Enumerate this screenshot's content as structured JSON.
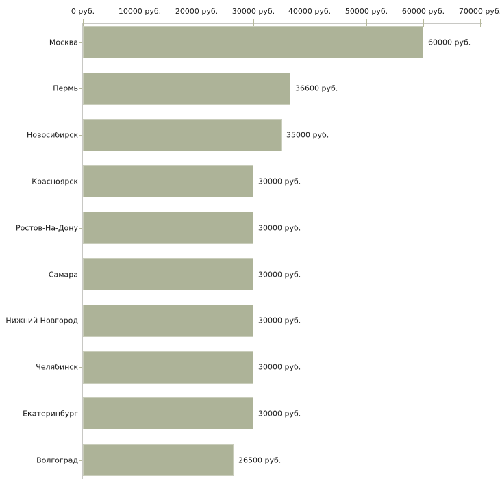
{
  "chart_data": {
    "type": "bar",
    "orientation": "horizontal",
    "title": "",
    "categories": [
      "Москва",
      "Пермь",
      "Новосибирск",
      "Красноярск",
      "Ростов-На-Дону",
      "Самара",
      "Нижний Новгород",
      "Челябинск",
      "Екатеринбург",
      "Волгоград"
    ],
    "values": [
      60000,
      36600,
      35000,
      30000,
      30000,
      30000,
      30000,
      30000,
      30000,
      26500
    ],
    "value_labels": [
      "60000 руб.",
      "36600 руб.",
      "35000 руб.",
      "30000 руб.",
      "30000 руб.",
      "30000 руб.",
      "30000 руб.",
      "30000 руб.",
      "30000 руб.",
      "26500 руб."
    ],
    "unit": "руб.",
    "x_axis": {
      "position": "top",
      "min": 0,
      "max": 70000,
      "tick_values": [
        0,
        10000,
        20000,
        30000,
        40000,
        50000,
        60000,
        70000
      ],
      "tick_labels": [
        "0 руб.",
        "10000 руб.",
        "20000 руб.",
        "30000 руб.",
        "40000 руб.",
        "50000 руб.",
        "60000 руб.",
        "70000 руб."
      ]
    },
    "grid": false,
    "legend": false
  },
  "colors": {
    "background": "#ffffff",
    "bar_fill": "#adb398",
    "bar_border": "#c9cdbb",
    "axis_line": "#c8c8c4",
    "tick_mark": "#b5b89a",
    "text": "#1a1a1a"
  }
}
